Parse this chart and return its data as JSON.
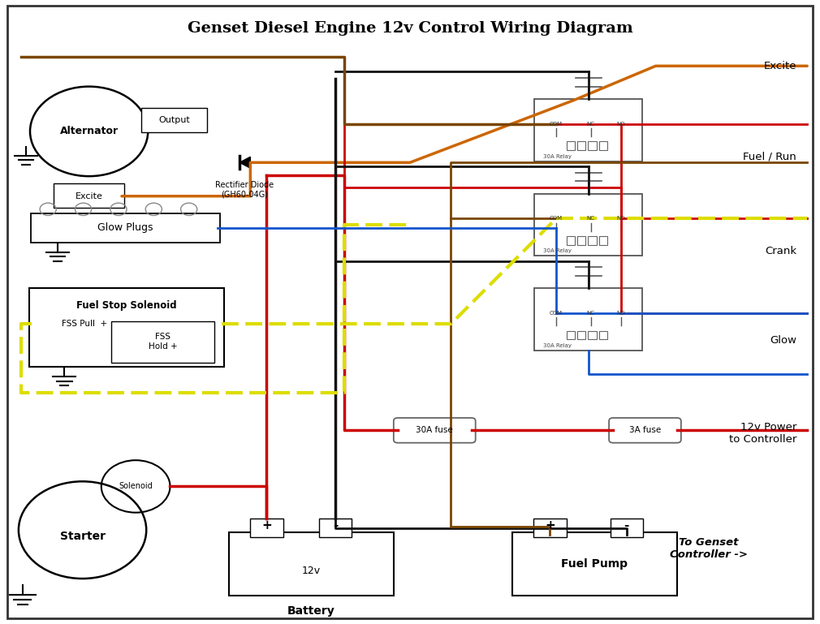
{
  "title": "Genset Diesel Engine 12v Control Wiring Diagram",
  "title_fontsize": 14,
  "bg_color": "#ffffff",
  "fig_width": 10.1,
  "fig_height": 7.69,
  "colors": {
    "red": "#cc0000",
    "orange": "#cc6600",
    "brown": "#7a4500",
    "black": "#111111",
    "yellow": "#dddd00",
    "blue": "#1155cc",
    "gray": "#888888",
    "dark": "#333333"
  },
  "labels": {
    "alternator": "Alternator",
    "output": "Output",
    "excite": "Excite",
    "glow_plugs": "Glow Plugs",
    "fss": "Fuel Stop Solenoid",
    "fss_pull": "FSS Pull  +",
    "fss_hold": "FSS\nHold +",
    "solenoid": "Solenoid",
    "starter": "Starter",
    "battery_label": "Battery",
    "battery_v": "12v",
    "fuel_pump": "Fuel Pump",
    "relay_label": "30A Relay",
    "diode": "Rectifier Diode\n(GH60-04G)",
    "fuse30": "30A fuse",
    "fuse3": "3A fuse",
    "side_excite": "Excite",
    "side_fuel": "Fuel / Run",
    "side_crank": "Crank",
    "side_glow": "Glow",
    "side_power": "12v Power\nto Controller",
    "genset_ctrl": "To Genset\nController ->"
  }
}
